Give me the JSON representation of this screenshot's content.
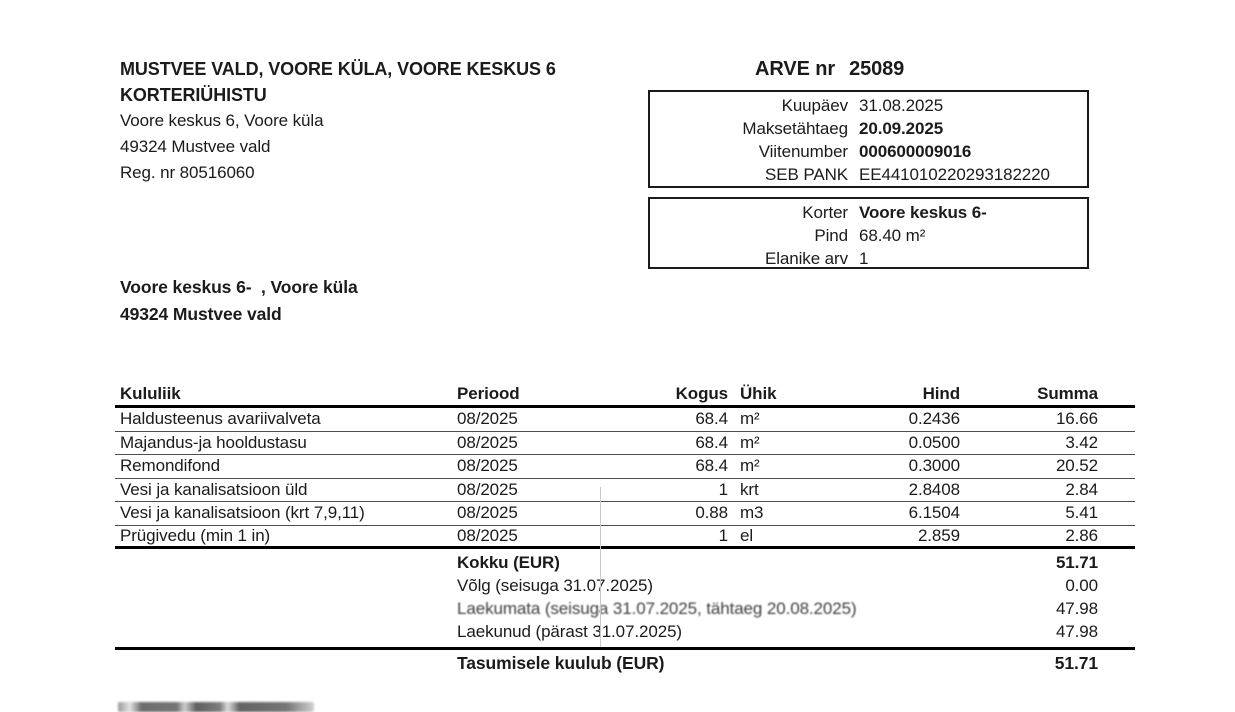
{
  "sender": {
    "name_line1": "MUSTVEE VALD, VOORE KÜLA, VOORE KESKUS 6",
    "name_line2": "KORTERIÜHISTU",
    "address_line1": "Voore keskus 6, Voore küla",
    "address_line2": "49324 Mustvee vald",
    "reg_number": "Reg. nr 80516060"
  },
  "invoice": {
    "title_label": "ARVE nr",
    "number": "25089",
    "details": [
      {
        "label": "Kuupäev",
        "value": "31.08.2025"
      },
      {
        "label": "Maksetähtaeg",
        "value": "20.09.2025"
      },
      {
        "label": "Viitenumber",
        "value": "000600009016"
      },
      {
        "label": "SEB PANK",
        "value": "EE441010220293182220"
      }
    ]
  },
  "apartment": {
    "details": [
      {
        "label": "Korter",
        "value": "Voore keskus 6-"
      },
      {
        "label": "Pind",
        "value": "68.40 m²"
      },
      {
        "label": "Elanike arv",
        "value": "1"
      }
    ]
  },
  "recipient": {
    "line1": "Voore keskus 6-  , Voore küla",
    "line2": "49324 Mustvee vald"
  },
  "table": {
    "headers": [
      "Kululiik",
      "Periood",
      "Kogus",
      "Ühik",
      "Hind",
      "Summa"
    ],
    "rows": [
      [
        "Haldusteenus avariivalveta",
        "08/2025",
        "68.4",
        "m²",
        "0.2436",
        "16.66"
      ],
      [
        "Majandus-ja hooldustasu",
        "08/2025",
        "68.4",
        "m²",
        "0.0500",
        "3.42"
      ],
      [
        "Remondifond",
        "08/2025",
        "68.4",
        "m²",
        "0.3000",
        "20.52"
      ],
      [
        "Vesi ja kanalisatsioon üld",
        "08/2025",
        "1",
        "krt",
        "2.8408",
        "2.84"
      ],
      [
        "Vesi ja kanalisatsioon (krt 7,9,11)",
        "08/2025",
        "0.88",
        "m3",
        "6.1504",
        "5.41"
      ],
      [
        "Prügivedu (min 1 in)",
        "08/2025",
        "1",
        "el",
        "2.859",
        "2.86"
      ]
    ]
  },
  "summary": {
    "rows": [
      {
        "label": "Kokku (EUR)",
        "value": "51.71"
      },
      {
        "label": "Võlg (seisuga 31.07.2025)",
        "value": "0.00"
      },
      {
        "label": "Laekumata (seisuga 31.07.2025, tähtaeg 20.08.2025)",
        "value": "47.98"
      },
      {
        "label": "Laekunud (pärast 31.07.2025)",
        "value": "47.98"
      }
    ],
    "total": {
      "label": "Tasumisele kuulub (EUR)",
      "value": "51.71"
    }
  }
}
